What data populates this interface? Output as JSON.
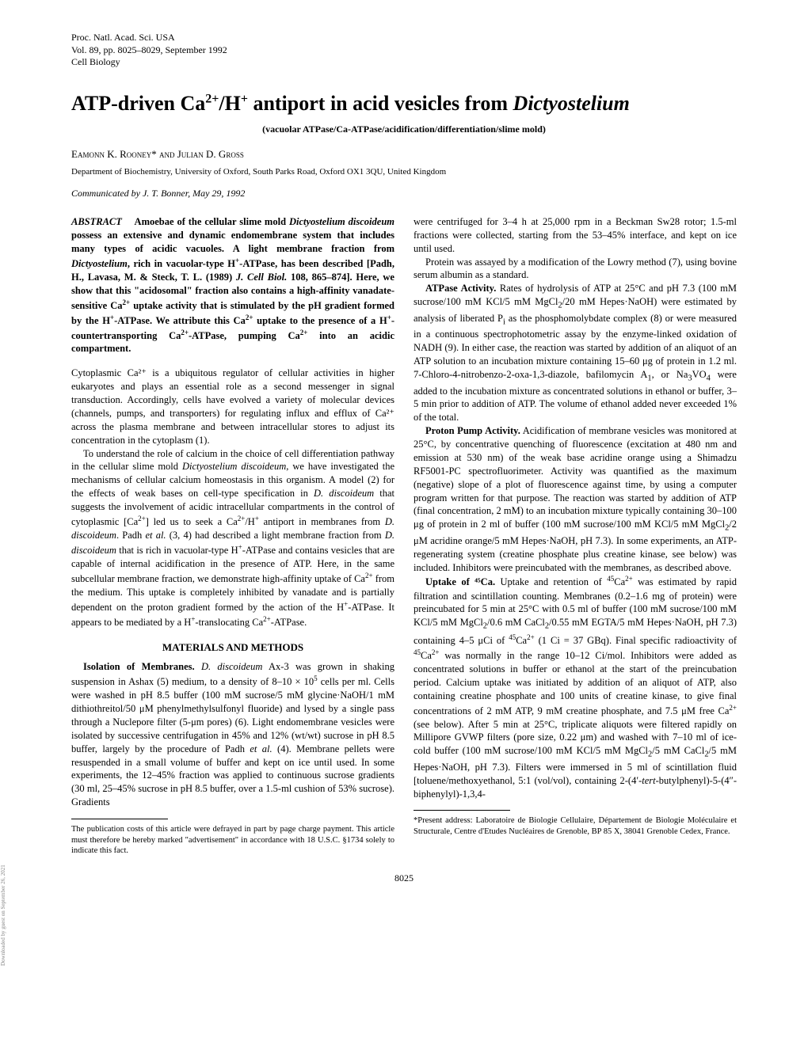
{
  "header": {
    "line1": "Proc. Natl. Acad. Sci. USA",
    "line2": "Vol. 89, pp. 8025–8029, September 1992",
    "line3": "Cell Biology"
  },
  "title": "ATP-driven Ca²⁺/H⁺ antiport in acid vesicles from Dictyostelium",
  "subtitle": "(vacuolar ATPase/Ca-ATPase/acidification/differentiation/slime mold)",
  "authors": "Eamonn K. Rooney* and Julian D. Gross",
  "affiliation": "Department of Biochemistry, University of Oxford, South Parks Road, Oxford OX1 3QU, United Kingdom",
  "communicated": "Communicated by J. T. Bonner, May 29, 1992",
  "abstract_label": "ABSTRACT",
  "abstract": "Amoebae of the cellular slime mold Dictyostelium discoideum possess an extensive and dynamic endomembrane system that includes many types of acidic vacuoles. A light membrane fraction from Dictyostelium, rich in vacuolar-type H⁺-ATPase, has been described [Padh, H., Lavasa, M. & Steck, T. L. (1989) J. Cell Biol. 108, 865–874]. Here, we show that this \"acidosomal\" fraction also contains a high-affinity vanadate-sensitive Ca²⁺ uptake activity that is stimulated by the pH gradient formed by the H⁺-ATPase. We attribute this Ca²⁺ uptake to the presence of a H⁺-countertransporting Ca²⁺-ATPase, pumping Ca²⁺ into an acidic compartment.",
  "col1_p1": "Cytoplasmic Ca²⁺ is a ubiquitous regulator of cellular activities in higher eukaryotes and plays an essential role as a second messenger in signal transduction. Accordingly, cells have evolved a variety of molecular devices (channels, pumps, and transporters) for regulating influx and efflux of Ca²⁺ across the plasma membrane and between intracellular stores to adjust its concentration in the cytoplasm (1).",
  "col1_p2": "To understand the role of calcium in the choice of cell differentiation pathway in the cellular slime mold Dictyostelium discoideum, we have investigated the mechanisms of cellular calcium homeostasis in this organism. A model (2) for the effects of weak bases on cell-type specification in D. discoideum that suggests the involvement of acidic intracellular compartments in the control of cytoplasmic [Ca²⁺] led us to seek a Ca²⁺/H⁺ antiport in membranes from D. discoideum. Padh et al. (3, 4) had described a light membrane fraction from D. discoideum that is rich in vacuolar-type H⁺-ATPase and contains vesicles that are capable of internal acidification in the presence of ATP. Here, in the same subcellular membrane fraction, we demonstrate high-affinity uptake of Ca²⁺ from the medium. This uptake is completely inhibited by vanadate and is partially dependent on the proton gradient formed by the action of the H⁺-ATPase. It appears to be mediated by a H⁺-translocating Ca²⁺-ATPase.",
  "section1": "MATERIALS AND METHODS",
  "col1_p3_runin": "Isolation of Membranes.",
  "col1_p3": " D. discoideum Ax-3 was grown in shaking suspension in Ashax (5) medium, to a density of 8–10 × 10⁵ cells per ml. Cells were washed in pH 8.5 buffer (100 mM sucrose/5 mM glycine·NaOH/1 mM dithiothreitol/50 μM phenylmethylsulfonyl fluoride) and lysed by a single pass through a Nuclepore filter (5-μm pores) (6). Light endomembrane vesicles were isolated by successive centrifugation in 45% and 12% (wt/wt) sucrose in pH 8.5 buffer, largely by the procedure of Padh et al. (4). Membrane pellets were resuspended in a small volume of buffer and kept on ice until used. In some experiments, the 12–45% fraction was applied to continuous sucrose gradients (30 ml, 25–45% sucrose in pH 8.5 buffer, over a 1.5-ml cushion of 53% sucrose). Gradients",
  "col1_footnote": "The publication costs of this article were defrayed in part by page charge payment. This article must therefore be hereby marked \"advertisement\" in accordance with 18 U.S.C. §1734 solely to indicate this fact.",
  "col2_p1": "were centrifuged for 3–4 h at 25,000 rpm in a Beckman Sw28 rotor; 1.5-ml fractions were collected, starting from the 53–45% interface, and kept on ice until used.",
  "col2_p2": "Protein was assayed by a modification of the Lowry method (7), using bovine serum albumin as a standard.",
  "col2_p3_runin": "ATPase Activity.",
  "col2_p3": " Rates of hydrolysis of ATP at 25°C and pH 7.3 (100 mM sucrose/100 mM KCl/5 mM MgCl₂/20 mM Hepes·NaOH) were estimated by analysis of liberated Pᵢ as the phosphomolybdate complex (8) or were measured in a continuous spectrophotometric assay by the enzyme-linked oxidation of NADH (9). In either case, the reaction was started by addition of an aliquot of an ATP solution to an incubation mixture containing 15–60 μg of protein in 1.2 ml. 7-Chloro-4-nitrobenzo-2-oxa-1,3-diazole, bafilomycin A₁, or Na₃VO₄ were added to the incubation mixture as concentrated solutions in ethanol or buffer, 3–5 min prior to addition of ATP. The volume of ethanol added never exceeded 1% of the total.",
  "col2_p4_runin": "Proton Pump Activity.",
  "col2_p4": " Acidification of membrane vesicles was monitored at 25°C, by concentrative quenching of fluorescence (excitation at 480 nm and emission at 530 nm) of the weak base acridine orange using a Shimadzu RF5001-PC spectrofluorimeter. Activity was quantified as the maximum (negative) slope of a plot of fluorescence against time, by using a computer program written for that purpose. The reaction was started by addition of ATP (final concentration, 2 mM) to an incubation mixture typically containing 30–100 μg of protein in 2 ml of buffer (100 mM sucrose/100 mM KCl/5 mM MgCl₂/2 μM acridine orange/5 mM Hepes·NaOH, pH 7.3). In some experiments, an ATP-regenerating system (creatine phosphate plus creatine kinase, see below) was included. Inhibitors were preincubated with the membranes, as described above.",
  "col2_p5_runin": "Uptake of ⁴⁵Ca.",
  "col2_p5": " Uptake and retention of ⁴⁵Ca²⁺ was estimated by rapid filtration and scintillation counting. Membranes (0.2–1.6 mg of protein) were preincubated for 5 min at 25°C with 0.5 ml of buffer (100 mM sucrose/100 mM KCl/5 mM MgCl₂/0.6 mM CaCl₂/0.55 mM EGTA/5 mM Hepes·NaOH, pH 7.3) containing 4–5 μCi of ⁴⁵Ca²⁺ (1 Ci = 37 GBq). Final specific radioactivity of ⁴⁵Ca²⁺ was normally in the range 10–12 Ci/mol. Inhibitors were added as concentrated solutions in buffer or ethanol at the start of the preincubation period. Calcium uptake was initiated by addition of an aliquot of ATP, also containing creatine phosphate and 100 units of creatine kinase, to give final concentrations of 2 mM ATP, 9 mM creatine phosphate, and 7.5 μM free Ca²⁺ (see below). After 5 min at 25°C, triplicate aliquots were filtered rapidly on Millipore GVWP filters (pore size, 0.22 μm) and washed with 7–10 ml of ice-cold buffer (100 mM sucrose/100 mM KCl/5 mM MgCl₂/5 mM CaCl₂/5 mM Hepes·NaOH, pH 7.3). Filters were immersed in 5 ml of scintillation fluid [toluene/methoxyethanol, 5:1 (vol/vol), containing 2-(4′-tert-butylphenyl)-5-(4″-biphenylyl)-1,3,4-",
  "col2_footnote": "*Present address: Laboratoire de Biologie Cellulaire, Département de Biologie Moléculaire et Structurale, Centre d'Etudes Nucléaires de Grenoble, BP 85 X, 38041 Grenoble Cedex, France.",
  "page_number": "8025",
  "side_text": "Downloaded by guest on September 26, 2021"
}
